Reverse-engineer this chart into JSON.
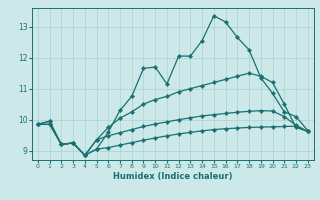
{
  "xlabel": "Humidex (Indice chaleur)",
  "bg_color": "#cce8e8",
  "grid_color": "#aad0d0",
  "line_color": "#1a7070",
  "xlim": [
    -0.5,
    23.5
  ],
  "ylim": [
    8.7,
    13.6
  ],
  "xticks": [
    0,
    1,
    2,
    3,
    4,
    5,
    6,
    7,
    8,
    9,
    10,
    11,
    12,
    13,
    14,
    15,
    16,
    17,
    18,
    19,
    20,
    21,
    22,
    23
  ],
  "yticks": [
    9,
    10,
    11,
    12,
    13
  ],
  "line1_x": [
    0,
    1,
    2,
    3,
    4,
    5,
    6,
    7,
    8,
    9,
    10,
    11,
    12,
    13,
    14,
    15,
    16,
    17,
    18,
    19,
    20,
    21,
    22,
    23
  ],
  "line1_y": [
    9.85,
    9.95,
    9.2,
    9.25,
    8.85,
    9.05,
    9.6,
    10.3,
    10.75,
    11.65,
    11.7,
    11.15,
    12.05,
    12.05,
    12.55,
    13.35,
    13.15,
    12.65,
    12.25,
    11.35,
    10.85,
    10.25,
    10.1,
    9.65
  ],
  "line2_x": [
    0,
    1,
    2,
    3,
    4,
    5,
    6,
    7,
    8,
    9,
    10,
    11,
    12,
    13,
    14,
    15,
    16,
    17,
    18,
    19,
    20,
    21,
    22,
    23
  ],
  "line2_y": [
    9.85,
    9.95,
    9.2,
    9.25,
    8.85,
    9.35,
    9.75,
    10.05,
    10.25,
    10.5,
    10.65,
    10.75,
    10.9,
    11.0,
    11.1,
    11.2,
    11.3,
    11.4,
    11.5,
    11.4,
    11.2,
    10.5,
    9.75,
    9.62
  ],
  "line3_x": [
    0,
    1,
    2,
    3,
    4,
    5,
    6,
    7,
    8,
    9,
    10,
    11,
    12,
    13,
    14,
    15,
    16,
    17,
    18,
    19,
    20,
    21,
    22,
    23
  ],
  "line3_y": [
    9.85,
    9.85,
    9.2,
    9.25,
    8.85,
    9.05,
    9.1,
    9.18,
    9.26,
    9.34,
    9.41,
    9.48,
    9.54,
    9.59,
    9.64,
    9.68,
    9.71,
    9.73,
    9.75,
    9.76,
    9.77,
    9.78,
    9.79,
    9.62
  ],
  "line4_x": [
    0,
    1,
    2,
    3,
    4,
    5,
    6,
    7,
    8,
    9,
    10,
    11,
    12,
    13,
    14,
    15,
    16,
    17,
    18,
    19,
    20,
    21,
    22,
    23
  ],
  "line4_y": [
    9.85,
    9.85,
    9.2,
    9.25,
    8.85,
    9.35,
    9.48,
    9.58,
    9.68,
    9.78,
    9.86,
    9.93,
    10.0,
    10.06,
    10.12,
    10.16,
    10.2,
    10.24,
    10.27,
    10.29,
    10.28,
    10.1,
    9.82,
    9.62
  ]
}
